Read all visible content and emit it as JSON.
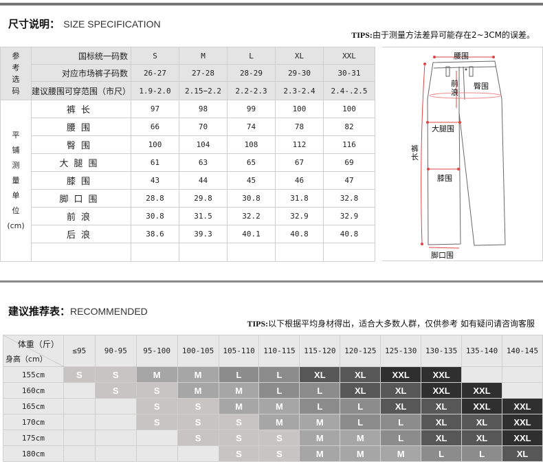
{
  "spec": {
    "title_cn": "尺寸说明：",
    "title_en": "SIZE SPECIFICATION",
    "tips_label": "TIPS:",
    "tips_text": "由于测量方法差异可能存在2~3CM的误差。",
    "ref_label": [
      "参",
      "考",
      "选",
      "码"
    ],
    "measure_label": [
      "平",
      "铺",
      "测",
      "量",
      "单",
      "位",
      "(cm)"
    ],
    "header_rows": [
      {
        "label": "国标统一码数",
        "values": [
          "S",
          "M",
          "L",
          "XL",
          "XXL"
        ]
      },
      {
        "label": "对应市场裤子码数",
        "values": [
          "26-27",
          "27-28",
          "28-29",
          "29-30",
          "30-31"
        ]
      },
      {
        "label": "建议腰围可穿范围（市尺）",
        "values": [
          "1.9-2.0",
          "2.15−2.2",
          "2.2-2.3",
          "2.3-2.4",
          "2.4-.2.5"
        ]
      }
    ],
    "measure_rows": [
      {
        "label": "裤长",
        "values": [
          "97",
          "98",
          "99",
          "100",
          "100"
        ]
      },
      {
        "label": "腰围",
        "values": [
          "66",
          "70",
          "74",
          "78",
          "82"
        ]
      },
      {
        "label": "臀围",
        "values": [
          "100",
          "104",
          "108",
          "112",
          "116"
        ]
      },
      {
        "label": "大腿围",
        "values": [
          "61",
          "63",
          "65",
          "67",
          "69"
        ]
      },
      {
        "label": "膝围",
        "values": [
          "43",
          "44",
          "45",
          "46",
          "47"
        ]
      },
      {
        "label": "脚口围",
        "values": [
          "28.8",
          "29.8",
          "30.8",
          "31.8",
          "32.8"
        ]
      },
      {
        "label": "前浪",
        "values": [
          "30.8",
          "31.5",
          "32.2",
          "32.9",
          "32.9"
        ]
      },
      {
        "label": "后浪",
        "values": [
          "38.6",
          "39.3",
          "40.1",
          "40.8",
          "40.8"
        ]
      }
    ]
  },
  "diagram": {
    "waist": "腰围",
    "front_rise": "前浪",
    "hip": "臀围",
    "thigh": "大腿围",
    "length": "裤长",
    "knee": "膝围",
    "hem": "脚口围"
  },
  "recommend": {
    "title_cn": "建议推荐表：",
    "title_en": "RECOMMENDED",
    "tips_label": "TIPS:",
    "tips_text": "以下根据平均身材得出，适合大多数人群，仅供参考 如有疑问请咨询客服",
    "weight_label": "体重（斤）",
    "height_label": "身高（cm）",
    "weights": [
      "≤95",
      "90-95",
      "95-100",
      "100-105",
      "105-110",
      "110-115",
      "115-120",
      "120-125",
      "125-130",
      "130-135",
      "135-140",
      "140-145"
    ],
    "rows": [
      {
        "height": "155cm",
        "sizes": [
          "S",
          "S",
          "M",
          "M",
          "L",
          "L",
          "XL",
          "XL",
          "XXL",
          "XXL",
          "",
          ""
        ]
      },
      {
        "height": "160cm",
        "sizes": [
          "",
          "S",
          "S",
          "M",
          "M",
          "L",
          "L",
          "XL",
          "XL",
          "XXL",
          "XXL",
          ""
        ]
      },
      {
        "height": "165cm",
        "sizes": [
          "",
          "",
          "S",
          "S",
          "M",
          "M",
          "L",
          "L",
          "XL",
          "XL",
          "XXL",
          "XXL"
        ]
      },
      {
        "height": "170cm",
        "sizes": [
          "",
          "",
          "S",
          "S",
          "S",
          "M",
          "M",
          "L",
          "L",
          "XL",
          "XL",
          "XXL"
        ]
      },
      {
        "height": "175cm",
        "sizes": [
          "",
          "",
          "",
          "S",
          "S",
          "S",
          "M",
          "M",
          "L",
          "XL",
          "XL",
          "XXL"
        ]
      },
      {
        "height": "180cm",
        "sizes": [
          "",
          "",
          "",
          "",
          "S",
          "S",
          "M",
          "M",
          "M",
          "L",
          "L",
          "XL"
        ]
      }
    ],
    "size_colors": {
      "S": "#c9c4c4",
      "M": "#a6a6a6",
      "L": "#8c8c8c",
      "XL": "#575757",
      "XXL": "#2f2f2f"
    }
  }
}
